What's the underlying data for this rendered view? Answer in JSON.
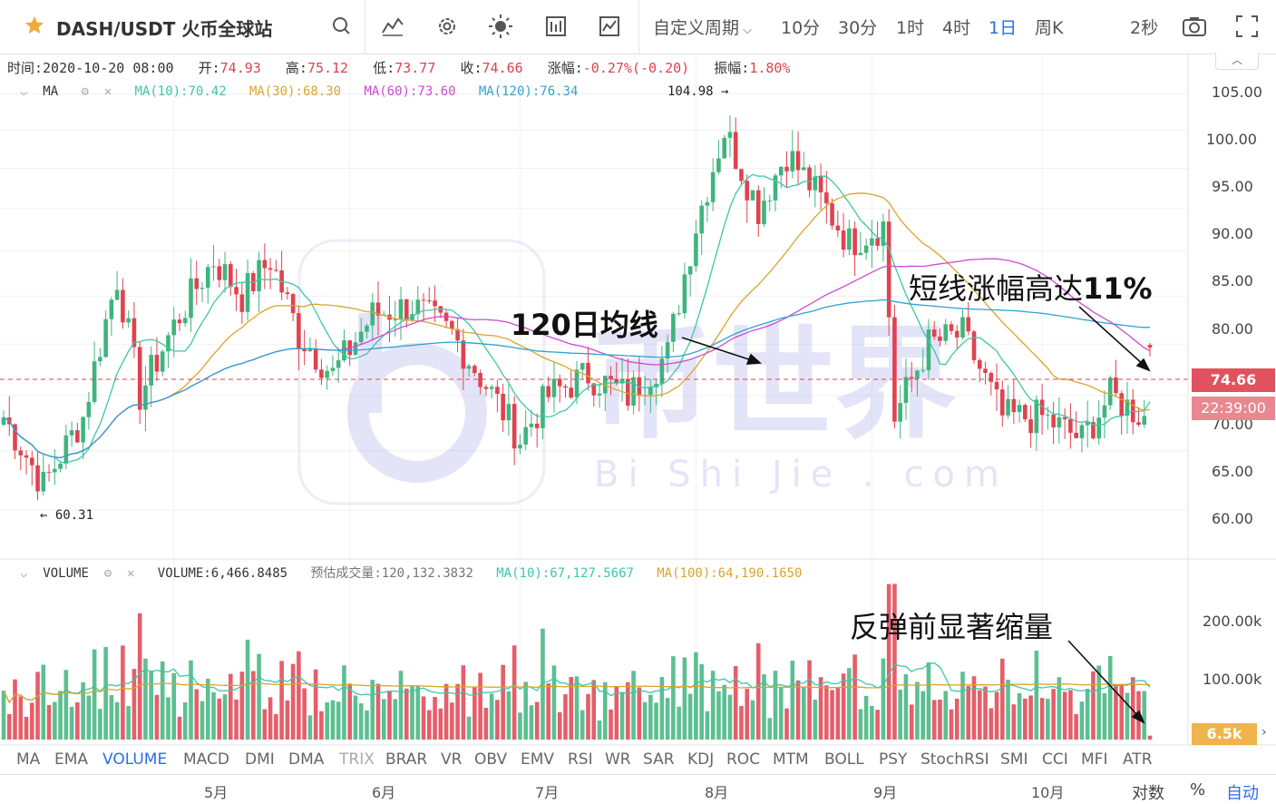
{
  "toolbar": {
    "title": "DASH/USDT 火币全球站",
    "custom_period": "自定义周期",
    "periods": [
      "10分",
      "30分",
      "1时",
      "4时",
      "1日",
      "周K"
    ],
    "active_period": "1日",
    "refresh": "2秒"
  },
  "info": {
    "time_label": "时间:",
    "time": "2020-10-20 08:00",
    "open_label": "开:",
    "open": "74.93",
    "high_label": "高:",
    "high": "75.12",
    "low_label": "低:",
    "low": "73.77",
    "close_label": "收:",
    "close": "74.66",
    "change_label": "涨幅:",
    "change": "-0.27%(-0.20)",
    "amp_label": "振幅:",
    "amp": "1.80%"
  },
  "ma_legend": {
    "name": "MA",
    "ma10": "MA(10):70.42",
    "ma30": "MA(30):68.30",
    "ma60": "MA(60):73.60",
    "ma120": "MA(120):76.34",
    "high_marker": "104.98 →",
    "low_marker": "← 60.31"
  },
  "vol_legend": {
    "name": "VOLUME",
    "volume": "VOLUME:6,466.8485",
    "estimate": "预估成交量:120,132.3832",
    "ma10": "MA(10):67,127.5667",
    "ma100": "MA(100):64,190.1650"
  },
  "annotations": {
    "ma120": "120日均线",
    "surge_prefix": "短线涨幅高达",
    "surge_value": "11%",
    "volume": "反弹前显著缩量"
  },
  "watermark": {
    "cn": "币世界",
    "en": "Bi Shi Jie . com"
  },
  "price_badge": "74.66",
  "countdown_badge": "22:39:00",
  "volume_badge": "6.5k",
  "price_axis": [
    "105.00",
    "100.00",
    "95.00",
    "90.00",
    "85.00",
    "80.00",
    "70.00",
    "65.00",
    "60.00"
  ],
  "volume_axis": [
    "200.00k",
    "100.00k"
  ],
  "indicators": [
    "MA",
    "EMA",
    "VOLUME",
    "MACD",
    "DMI",
    "DMA",
    "TRIX",
    "BRAR",
    "VR",
    "OBV",
    "EMV",
    "RSI",
    "WR",
    "SAR",
    "KDJ",
    "ROC",
    "MTM",
    "BOLL",
    "PSY",
    "StochRSI",
    "SMI",
    "CCI",
    "MFI",
    "ATR"
  ],
  "active_indicator": "VOLUME",
  "months": [
    "5月",
    "6月",
    "7月",
    "8月",
    "9月",
    "10月"
  ],
  "axis_modes": {
    "log": "对数",
    "percent": "%",
    "auto": "自动"
  },
  "colors": {
    "up": "#3fb47e",
    "down": "#e0424f",
    "ma10": "#3cc7a8",
    "ma30": "#d9a52b",
    "ma60": "#cc4bd0",
    "ma120": "#2ea3cf",
    "accent": "#2a6ee8"
  },
  "chart_data": {
    "type": "candlestick",
    "title": "DASH/USDT 火币全球站",
    "interval": "1日",
    "y_axis": {
      "scale": "log",
      "range": [
        58,
        107
      ],
      "ticks": [
        60,
        65,
        70,
        75,
        80,
        85,
        90,
        95,
        100,
        105
      ]
    },
    "last": {
      "date": "2020-10-20",
      "open": 74.93,
      "high": 75.12,
      "low": 73.77,
      "close": 74.66
    },
    "period_high": 104.98,
    "period_low": 60.31,
    "price_anchors": [
      {
        "date": "2020-04-01",
        "price": 68
      },
      {
        "date": "2020-04-08",
        "price": 62
      },
      {
        "date": "2020-04-15",
        "price": 68
      },
      {
        "date": "2020-04-21",
        "price": 82
      },
      {
        "date": "2020-04-25",
        "price": 70
      },
      {
        "date": "2020-05-02",
        "price": 78
      },
      {
        "date": "2020-05-08",
        "price": 84
      },
      {
        "date": "2020-05-13",
        "price": 80
      },
      {
        "date": "2020-05-18",
        "price": 84
      },
      {
        "date": "2020-05-23",
        "price": 76
      },
      {
        "date": "2020-05-29",
        "price": 72
      },
      {
        "date": "2020-06-05",
        "price": 78
      },
      {
        "date": "2020-06-12",
        "price": 79
      },
      {
        "date": "2020-06-19",
        "price": 76
      },
      {
        "date": "2020-06-25",
        "price": 71
      },
      {
        "date": "2020-07-01",
        "price": 66
      },
      {
        "date": "2020-07-06",
        "price": 70
      },
      {
        "date": "2020-07-13",
        "price": 72
      },
      {
        "date": "2020-07-20",
        "price": 70
      },
      {
        "date": "2020-07-27",
        "price": 74
      },
      {
        "date": "2020-08-01",
        "price": 88
      },
      {
        "date": "2020-08-06",
        "price": 100
      },
      {
        "date": "2020-08-12",
        "price": 90
      },
      {
        "date": "2020-08-17",
        "price": 97
      },
      {
        "date": "2020-08-22",
        "price": 92
      },
      {
        "date": "2020-08-28",
        "price": 86
      },
      {
        "date": "2020-09-03",
        "price": 88
      },
      {
        "date": "2020-09-05",
        "price": 68
      },
      {
        "date": "2020-09-11",
        "price": 75
      },
      {
        "date": "2020-09-17",
        "price": 76
      },
      {
        "date": "2020-09-24",
        "price": 68
      },
      {
        "date": "2020-10-01",
        "price": 68
      },
      {
        "date": "2020-10-08",
        "price": 66
      },
      {
        "date": "2020-10-13",
        "price": 70
      },
      {
        "date": "2020-10-19",
        "price": 68
      },
      {
        "date": "2020-10-20",
        "price": 74.66
      }
    ],
    "ma_series": [
      {
        "name": "MA(10)",
        "last": 70.42
      },
      {
        "name": "MA(30)",
        "last": 68.3
      },
      {
        "name": "MA(60)",
        "last": 73.6
      },
      {
        "name": "MA(120)",
        "last": 76.34
      }
    ],
    "volume": {
      "last": 6466.8485,
      "estimate": 120132.3832,
      "ma10": 67127.5667,
      "ma100": 64190.165,
      "range": [
        0,
        260000
      ],
      "ticks": [
        100000,
        200000
      ]
    }
  }
}
